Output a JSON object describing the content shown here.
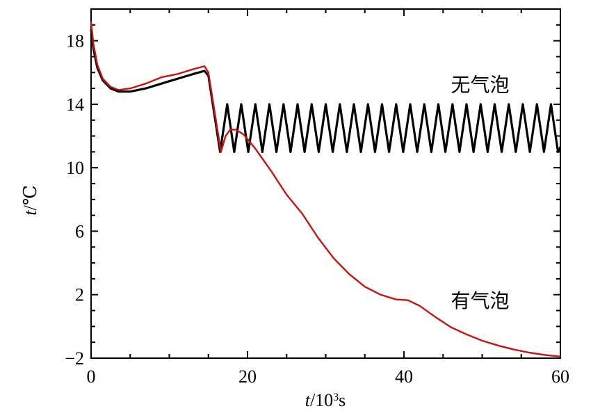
{
  "chart_data": {
    "type": "line",
    "title": "",
    "xlabel_italic": "t",
    "xlabel_rest": "/10",
    "xlabel_sup": "3",
    "xlabel_unit": "s",
    "ylabel_italic": "t",
    "ylabel_rest": "/℃",
    "xlim": [
      0,
      60
    ],
    "ylim": [
      -2,
      20
    ],
    "xticks": [
      0,
      20,
      40,
      60
    ],
    "xtick_labels": [
      "0",
      "20",
      "40",
      "60"
    ],
    "yticks": [
      -2,
      2,
      6,
      10,
      14,
      18
    ],
    "ytick_labels": [
      "−2",
      "2",
      "6",
      "10",
      "14",
      "18"
    ],
    "grid": false,
    "series": [
      {
        "name": "无气泡",
        "color": "#000000",
        "x": [
          0,
          0.3,
          0.8,
          1.5,
          2.5,
          3.5,
          5,
          7,
          9,
          11,
          13,
          14.5,
          15,
          16.5,
          17.4,
          18.3,
          19.2,
          20.1,
          21.0,
          21.9,
          22.8,
          23.7,
          24.6,
          25.5,
          26.4,
          27.3,
          28.2,
          29.1,
          30.0,
          30.9,
          31.8,
          32.7,
          33.6,
          34.5,
          35.4,
          36.3,
          37.2,
          38.1,
          39.0,
          39.9,
          40.8,
          41.7,
          42.6,
          43.5,
          44.4,
          45.3,
          46.2,
          47.1,
          48.0,
          48.9,
          49.8,
          50.7,
          51.6,
          52.5,
          53.4,
          54.3,
          55.2,
          56.1,
          57.0,
          57.9,
          58.8,
          59.7,
          60
        ],
        "y": [
          18.7,
          17.5,
          16.3,
          15.5,
          15.0,
          14.8,
          14.8,
          15.0,
          15.3,
          15.6,
          15.9,
          16.1,
          15.8,
          11.0,
          14.0,
          11.0,
          14.0,
          11.0,
          14.0,
          11.0,
          14.0,
          11.0,
          14.0,
          11.0,
          14.0,
          11.0,
          14.0,
          11.0,
          14.0,
          11.0,
          14.0,
          11.0,
          14.0,
          11.0,
          14.0,
          11.0,
          14.0,
          11.0,
          14.0,
          11.0,
          14.0,
          11.0,
          14.0,
          11.0,
          14.0,
          11.0,
          14.0,
          11.0,
          14.0,
          11.0,
          14.0,
          11.0,
          14.0,
          11.0,
          14.0,
          11.0,
          14.0,
          11.0,
          14.0,
          11.0,
          14.0,
          11.0,
          11.3
        ]
      },
      {
        "name": "有气泡",
        "color": "#cc1111",
        "x": [
          0,
          0.3,
          0.8,
          1.5,
          2.5,
          3.5,
          5,
          7,
          9,
          11,
          13,
          14.5,
          15,
          16.6,
          17.2,
          17.8,
          18.5,
          19.5,
          21,
          23,
          25,
          27,
          29,
          31,
          33,
          35,
          37,
          39,
          40.5,
          42,
          44,
          46,
          48,
          50,
          52,
          54,
          56,
          58,
          60
        ],
        "y": [
          19.2,
          17.8,
          16.5,
          15.6,
          15.1,
          14.9,
          15.0,
          15.3,
          15.7,
          15.9,
          16.2,
          16.4,
          16.0,
          11.0,
          12.0,
          12.4,
          12.4,
          12.1,
          11.2,
          9.8,
          8.3,
          7.1,
          5.6,
          4.3,
          3.3,
          2.5,
          2.0,
          1.7,
          1.65,
          1.3,
          0.6,
          -0.05,
          -0.5,
          -0.9,
          -1.2,
          -1.45,
          -1.65,
          -1.8,
          -1.9
        ]
      }
    ],
    "annotations": [
      {
        "text": "无气泡",
        "x": 46,
        "y": 14.8
      },
      {
        "text": "有气泡",
        "x": 46,
        "y": 1.2
      }
    ]
  }
}
